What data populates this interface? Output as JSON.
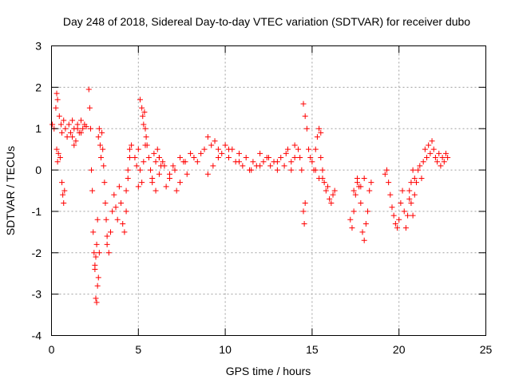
{
  "chart_data": {
    "type": "scatter",
    "title": "Day 248 of 2018, Sidereal Day-to-day VTEC variation (SDTVAR) for receiver dubo",
    "xlabel": "GPS time / hours",
    "ylabel": "SDTVAR / TECUs",
    "xlim": [
      0,
      25
    ],
    "ylim": [
      -4,
      3
    ],
    "xticks": [
      "0",
      "5",
      "10",
      "15",
      "20",
      "25"
    ],
    "yticks": [
      "-4",
      "-3",
      "-2",
      "-1",
      "0",
      "1",
      "2",
      "3"
    ],
    "grid": true,
    "marker": "+",
    "color": "#ff0000",
    "series": [
      {
        "name": "SDTVAR",
        "x": [
          0.05,
          0.15,
          0.25,
          0.3,
          0.35,
          0.45,
          0.55,
          0.6,
          0.7,
          0.8,
          0.9,
          1.0,
          1.1,
          1.2,
          1.3,
          1.4,
          1.5,
          1.6,
          1.7,
          1.8,
          1.9,
          2.0,
          0.4,
          0.5,
          0.6,
          0.65,
          0.7,
          0.75,
          0.3,
          0.35,
          1.2,
          1.3,
          1.5,
          1.7,
          2.15,
          2.2,
          2.25,
          2.3,
          2.35,
          2.4,
          2.45,
          2.5,
          2.55,
          2.6,
          2.65,
          2.7,
          2.75,
          2.8,
          2.85,
          2.9,
          2.95,
          3.0,
          3.05,
          3.1,
          3.15,
          3.2,
          2.5,
          2.55,
          2.6,
          2.65,
          2.7,
          2.75,
          3.2,
          3.3,
          3.4,
          3.5,
          3.6,
          3.7,
          3.8,
          3.9,
          4.0,
          4.1,
          4.2,
          4.3,
          4.4,
          4.5,
          4.6,
          4.3,
          4.4,
          4.5,
          4.8,
          4.9,
          5.0,
          5.1,
          5.2,
          5.25,
          5.3,
          5.35,
          5.4,
          5.45,
          5.5,
          5.6,
          5.7,
          5.8,
          5.9,
          6.0,
          6.1,
          6.2,
          6.3,
          5.0,
          5.1,
          5.2,
          5.3,
          5.4,
          5.8,
          6.0,
          6.2,
          6.4,
          6.6,
          6.8,
          7.0,
          7.2,
          7.4,
          7.6,
          7.8,
          8.0,
          8.2,
          6.2,
          6.5,
          6.8,
          7.1,
          7.4,
          7.7,
          8.4,
          8.6,
          8.8,
          9.0,
          9.2,
          9.4,
          9.6,
          9.8,
          10.0,
          10.2,
          10.4,
          10.6,
          10.8,
          11.0,
          11.2,
          11.4,
          11.6,
          11.8,
          12.0,
          12.2,
          12.4,
          12.6,
          12.8,
          13.0,
          13.2,
          13.4,
          13.6,
          13.8,
          14.0,
          9.0,
          9.3,
          9.6,
          10.2,
          10.8,
          11.5,
          12.0,
          12.5,
          13.0,
          13.5,
          13.8,
          14.0,
          14.2,
          14.3,
          14.4,
          14.5,
          14.6,
          14.7,
          14.8,
          14.9,
          15.0,
          15.1,
          15.2,
          15.3,
          15.4,
          15.5,
          14.5,
          14.55,
          14.6,
          15.2,
          15.4,
          15.6,
          15.7,
          15.8,
          15.9,
          16.0,
          16.1,
          16.2,
          16.3,
          15.5,
          15.6,
          17.2,
          17.3,
          17.4,
          17.5,
          17.6,
          17.7,
          17.8,
          17.9,
          18.0,
          18.1,
          18.2,
          18.3,
          18.4,
          17.4,
          17.6,
          17.8,
          18.0,
          19.2,
          19.3,
          19.4,
          19.5,
          19.6,
          19.7,
          19.8,
          19.9,
          20.0,
          20.1,
          20.2,
          20.3,
          20.4,
          20.5,
          20.6,
          20.7,
          20.8,
          20.9,
          21.0,
          21.1,
          21.2,
          21.3,
          21.4,
          21.5,
          21.6,
          21.7,
          21.8,
          21.9,
          22.0,
          22.1,
          22.2,
          22.3,
          22.4,
          22.5,
          22.6,
          22.7,
          22.8,
          20.6,
          20.7,
          20.8,
          20.9
        ],
        "y": [
          1.1,
          1.0,
          1.5,
          1.85,
          1.7,
          1.3,
          1.1,
          0.9,
          1.2,
          1.0,
          0.8,
          1.1,
          0.9,
          1.2,
          1.0,
          0.7,
          1.1,
          0.9,
          1.2,
          1.0,
          1.1,
          1.05,
          0.4,
          0.3,
          -0.3,
          -0.6,
          -0.8,
          -0.5,
          0.5,
          0.2,
          0.8,
          0.6,
          1.0,
          0.9,
          1.95,
          1.5,
          1.0,
          0.0,
          -0.5,
          -1.5,
          -2.0,
          -2.3,
          -2.1,
          -1.8,
          -1.2,
          0.8,
          1.0,
          0.6,
          0.3,
          0.9,
          0.5,
          0.1,
          -0.3,
          -0.8,
          -1.2,
          -1.6,
          -2.4,
          -3.1,
          -3.2,
          -2.8,
          -2.6,
          -2.0,
          -1.8,
          -2.0,
          -1.5,
          -1.0,
          -0.6,
          -0.9,
          -1.2,
          -0.4,
          -0.8,
          -1.3,
          -1.5,
          -1.0,
          0.0,
          0.5,
          0.6,
          -0.5,
          -0.2,
          0.3,
          0.3,
          0.1,
          0.5,
          1.7,
          1.5,
          1.3,
          1.1,
          1.4,
          1.0,
          0.8,
          0.6,
          0.3,
          0.0,
          -0.2,
          0.4,
          0.2,
          0.5,
          0.3,
          0.1,
          -0.4,
          0.0,
          -0.3,
          0.2,
          0.6,
          -0.3,
          -0.5,
          -0.1,
          0.2,
          -0.4,
          -0.2,
          0.1,
          -0.5,
          -0.3,
          0.2,
          -0.1,
          0.4,
          0.3,
          0.3,
          0.1,
          -0.1,
          0.0,
          0.3,
          0.2,
          0.2,
          0.4,
          0.5,
          0.8,
          0.6,
          0.7,
          0.5,
          0.4,
          0.6,
          0.3,
          0.5,
          0.2,
          0.4,
          0.1,
          0.3,
          0.0,
          0.2,
          0.1,
          0.4,
          0.2,
          0.3,
          0.1,
          0.2,
          0.0,
          0.3,
          0.1,
          0.5,
          0.2,
          0.3,
          -0.1,
          0.1,
          0.3,
          0.5,
          0.2,
          0.0,
          0.1,
          0.3,
          0.2,
          0.4,
          0.0,
          0.6,
          0.5,
          0.3,
          0.0,
          1.6,
          1.3,
          1.0,
          0.5,
          0.3,
          0.2,
          0.0,
          0.5,
          0.8,
          1.0,
          0.9,
          -1.0,
          -1.3,
          -0.8,
          0.0,
          -0.2,
          -0.2,
          -0.3,
          -0.5,
          -0.4,
          -0.7,
          -0.8,
          -0.6,
          -0.5,
          0.3,
          0.0,
          -1.2,
          -1.4,
          -1.0,
          -0.6,
          -0.2,
          -0.4,
          -0.8,
          -1.5,
          -1.7,
          -1.3,
          -1.0,
          -0.5,
          -0.3,
          -0.5,
          -0.3,
          -0.4,
          -0.2,
          -0.1,
          0.0,
          -0.3,
          -0.6,
          -0.9,
          -1.1,
          -1.3,
          -1.4,
          -1.2,
          -0.8,
          -0.5,
          -1.0,
          -1.4,
          -1.1,
          -0.7,
          -0.3,
          0.0,
          -0.2,
          -0.3,
          0.0,
          0.1,
          -0.2,
          0.2,
          0.5,
          0.3,
          0.6,
          0.4,
          0.7,
          0.5,
          0.3,
          0.2,
          0.4,
          0.1,
          0.3,
          0.2,
          0.4,
          0.3,
          -0.5,
          -0.8,
          -1.1,
          -0.6
        ]
      }
    ]
  }
}
